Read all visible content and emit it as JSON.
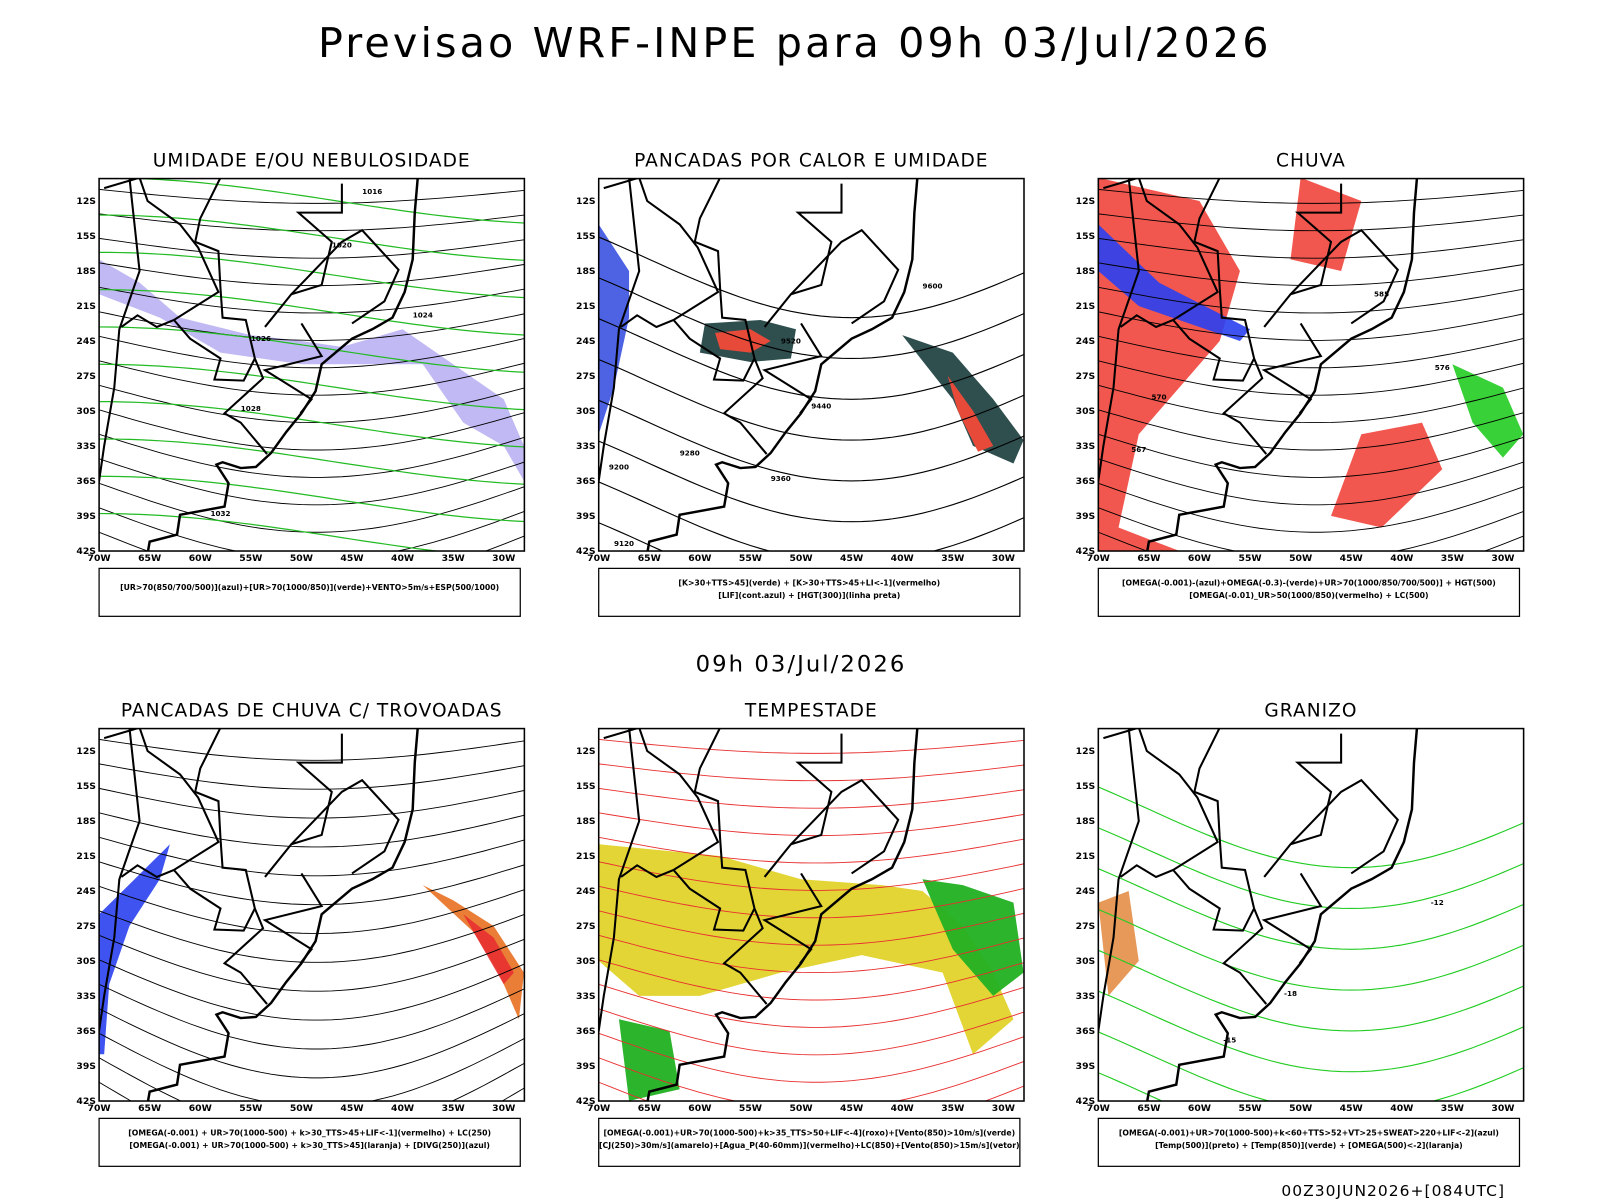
{
  "header": {
    "title": "Previsao WRF-INPE  para 09h 03/Jul/2026",
    "subtitle": "09h 03/Jul/2026",
    "footer": "00Z30JUN2026+[084UTC]"
  },
  "axes": {
    "lat": [
      "12S",
      "15S",
      "18S",
      "21S",
      "24S",
      "27S",
      "30S",
      "33S",
      "36S",
      "39S",
      "42S"
    ],
    "lon": [
      "70W",
      "65W",
      "60W",
      "55W",
      "50W",
      "45W",
      "40W",
      "35W",
      "30W"
    ]
  },
  "panels": [
    {
      "title": "UMIDADE E/OU NEBULOSIDADE",
      "legend": [
        "[UR>70(850/700/500)](azul)+[UR>70(1000/850)](verde)+VENTO>5m/s+ESP(500/1000)"
      ],
      "contour_labels": [
        "1016",
        "1020",
        "1024",
        "1028",
        "1032",
        "1026"
      ]
    },
    {
      "title": "PANCADAS POR CALOR E UMIDADE",
      "legend": [
        "[K>30+TTS>45](verde) + [K>30+TTS>45+LI<-1](vermelho)",
        "[LIF](cont.azul) + [HGT(300)](linha preta)"
      ],
      "contour_labels": [
        "9600",
        "9520",
        "9440",
        "9360",
        "9280",
        "9200",
        "9120"
      ]
    },
    {
      "title": "CHUVA",
      "legend": [
        "[OMEGA(-0.001)-(azul)+OMEGA(-0.3)-(verde)+UR>70(1000/850/700/500)] + HGT(500)",
        "[OMEGA(-0.01)_UR>50(1000/850)(vermelho) + LC(500)"
      ],
      "contour_labels": [
        "585",
        "576",
        "570",
        "567"
      ]
    },
    {
      "title": "PANCADAS DE CHUVA C/ TROVOADAS",
      "legend": [
        "[OMEGA(-0.001) + UR>70(1000-500) + k>30_TTS>45+LIF<-1](vermelho) + LC(250)",
        "[OMEGA(-0.001) + UR>70(1000-500) + k>30_TTS>45](laranja) + [DIVG(250)](azul)"
      ],
      "contour_labels": []
    },
    {
      "title": "TEMPESTADE",
      "legend": [
        "[OMEGA(-0.001)+UR>70(1000-500)+k>35_TTS>50+LIF<-4](roxo)+[Vento(850)>10m/s](verde)",
        "[CJ(250)>30m/s](amarelo)+[Agua_P(40-60mm)](vermelho)+LC(850)+[Vento(850)>15m/s](vetor)"
      ],
      "contour_labels": []
    },
    {
      "title": "GRANIZO",
      "legend": [
        "[OMEGA(-0.001)+UR>70(1000-500)+k<60+TTS>52+VT>25+SWEAT>220+LIF<-2](azul)",
        "[Temp(500)](preto) + [Temp(850)](verde) + [OMEGA(500)<-2](laranja)"
      ],
      "contour_labels": [
        "-18",
        "-15",
        "-12"
      ]
    }
  ]
}
